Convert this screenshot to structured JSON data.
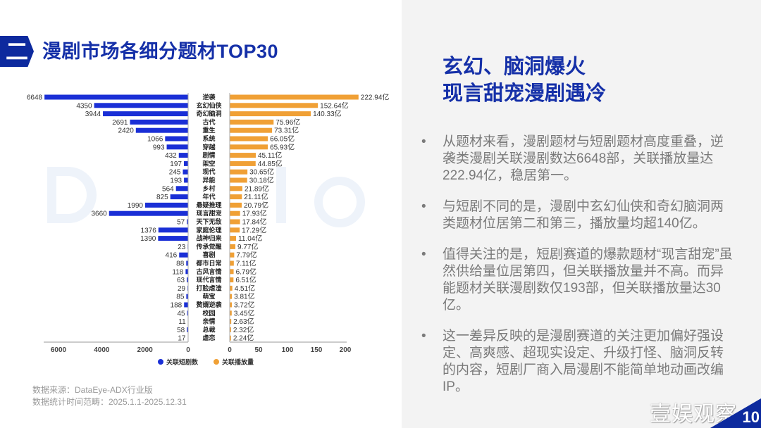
{
  "header": {
    "section_number": "二",
    "title": "漫剧市场各细分题材TOP30"
  },
  "watermark": "DataEye",
  "chart_data": {
    "type": "bar",
    "layout": "butterfly",
    "categories": [
      "逆袭",
      "玄幻仙侠",
      "奇幻脑洞",
      "古代",
      "重生",
      "系统",
      "穿越",
      "剧情",
      "架空",
      "现代",
      "异能",
      "乡村",
      "年代",
      "悬疑推理",
      "现言甜宠",
      "天下无敌",
      "家庭伦理",
      "战神归来",
      "传承觉醒",
      "喜剧",
      "都市日常",
      "古风言情",
      "现代言情",
      "打脸虐渣",
      "萌宝",
      "赘婿逆袭",
      "校园",
      "亲情",
      "总裁",
      "虐恋"
    ],
    "series": [
      {
        "name": "关联短剧数",
        "side": "left",
        "color": "#1a2fd6",
        "values": [
          6648,
          4350,
          3944,
          2691,
          2420,
          1066,
          993,
          432,
          197,
          245,
          193,
          564,
          825,
          1990,
          3660,
          57,
          1376,
          1390,
          23,
          416,
          88,
          118,
          63,
          29,
          85,
          188,
          45,
          11,
          58,
          17
        ],
        "labels": [
          "6648",
          "4350",
          "3944",
          "2691",
          "2420",
          "1066",
          "993",
          "432",
          "197",
          "245",
          "193",
          "564",
          "825",
          "1990",
          "3660",
          "57",
          "1376",
          "1390",
          "23",
          "416",
          "88",
          "118",
          "63",
          "29",
          "85",
          "188",
          "45",
          "11",
          "58",
          "17"
        ],
        "xlim": [
          0,
          6800
        ],
        "ticks": [
          "6000",
          "4000",
          "2000",
          "0"
        ]
      },
      {
        "name": "关联播放量",
        "side": "right",
        "color": "#f0a035",
        "unit": "亿",
        "values": [
          222.94,
          152.64,
          140.33,
          75.96,
          73.31,
          66.05,
          65.93,
          45.11,
          44.85,
          30.65,
          30.18,
          21.89,
          21.11,
          20.79,
          17.93,
          17.84,
          17.29,
          11.04,
          9.77,
          7.79,
          7.11,
          6.79,
          6.51,
          4.51,
          3.81,
          3.72,
          3.45,
          2.63,
          2.32,
          2.24
        ],
        "labels": [
          "222.94亿",
          "152.64亿",
          "140.33亿",
          "75.96亿",
          "73.31亿",
          "66.05亿",
          "65.93亿",
          "45.11亿",
          "44.85亿",
          "30.65亿",
          "30.18亿",
          "21.89亿",
          "21.11亿",
          "20.79亿",
          "17.93亿",
          "17.84亿",
          "17.29亿",
          "11.04亿",
          "9.77亿",
          "7.79亿",
          "7.11亿",
          "6.79亿",
          "6.51亿",
          "4.51亿",
          "3.81亿",
          "3.72亿",
          "3.45亿",
          "2.63亿",
          "2.32亿",
          "2.24亿"
        ],
        "xlim": [
          0,
          225
        ],
        "ticks": [
          "0",
          "50",
          "100",
          "150",
          "200"
        ]
      }
    ],
    "legend": "bottom",
    "grid": false
  },
  "right": {
    "headline_1": "玄幻、脑洞爆火",
    "headline_2": "现言甜宠漫剧遇冷",
    "bullet_char": "•",
    "bullets": [
      "从题材来看，漫剧题材与短剧题材高度重叠，逆袭类漫剧关联漫剧数达6648部，关联播放量达222.94亿，稳居第一。",
      "与短剧不同的是，漫剧中玄幻仙侠和奇幻脑洞两类题材位居第二和第三，播放量均超140亿。",
      "值得关注的是，短剧赛道的爆款题材“现言甜宠”虽然供给量位居第四，但关联播放量并不高。而异能题材关联漫剧数仅193部，但关联播放量达30亿。",
      "这一差异反映的是漫剧赛道的关注更加偏好强设定、高爽感、超现实设定、升级打怪、脑洞反转的内容，短剧厂商入局漫剧不能简单地动画改编IP。"
    ]
  },
  "footer": {
    "source": "数据来源：DataEye-ADX行业版",
    "period": "数据统计时间范畴：2025.1.1-2025.12.31",
    "brand": "壹娱观察",
    "page_number": "10"
  }
}
